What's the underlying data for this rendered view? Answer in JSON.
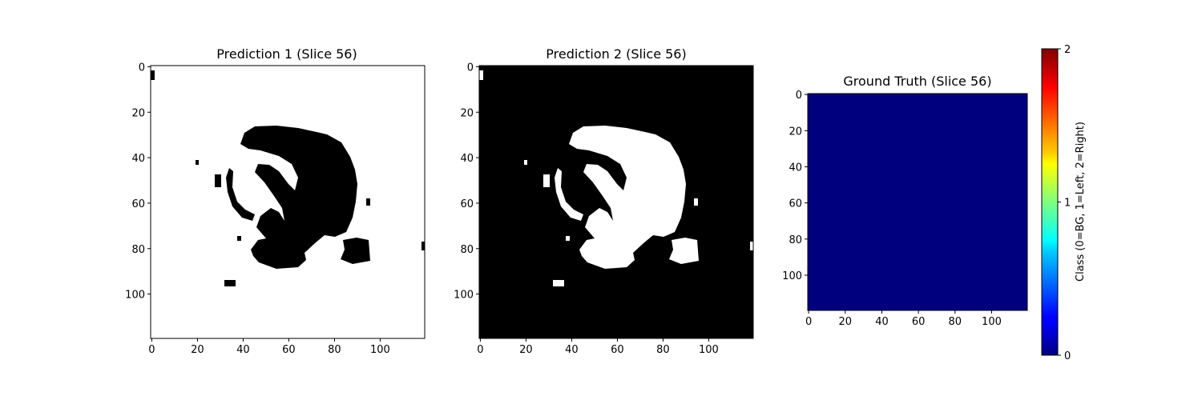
{
  "chart_data": [
    {
      "type": "heatmap",
      "title": "Prediction 1 (Slice 56)",
      "colormap": "gray",
      "description": "binary mask, white background, black segmented region",
      "background_value": 1,
      "foreground_value": 0,
      "shape": [
        120,
        120
      ],
      "x_ticks": [
        "0",
        "20",
        "40",
        "60",
        "80",
        "100"
      ],
      "y_ticks": [
        "0",
        "20",
        "40",
        "60",
        "80",
        "100"
      ]
    },
    {
      "type": "heatmap",
      "title": "Prediction 2 (Slice 56)",
      "colormap": "gray",
      "description": "binary mask, black background, white segmented region",
      "background_value": 0,
      "foreground_value": 1,
      "shape": [
        120,
        120
      ],
      "x_ticks": [
        "0",
        "20",
        "40",
        "60",
        "80",
        "100"
      ],
      "y_ticks": [
        "0",
        "20",
        "40",
        "60",
        "80",
        "100"
      ]
    },
    {
      "type": "heatmap",
      "title": "Ground Truth (Slice 56)",
      "colormap": "jet",
      "uniform_value": 0,
      "shape": [
        120,
        120
      ],
      "x_ticks": [
        "0",
        "20",
        "40",
        "60",
        "80",
        "100"
      ],
      "y_ticks": [
        "0",
        "20",
        "40",
        "60",
        "80",
        "100"
      ],
      "colorbar": {
        "label": "Class (0=BG, 1=Left, 2=Right)",
        "range": [
          0,
          2
        ],
        "ticks": [
          "0",
          "1",
          "2"
        ]
      }
    }
  ],
  "colors": {
    "black": "#000000",
    "white": "#ffffff",
    "jet_zero": "#00007f"
  }
}
